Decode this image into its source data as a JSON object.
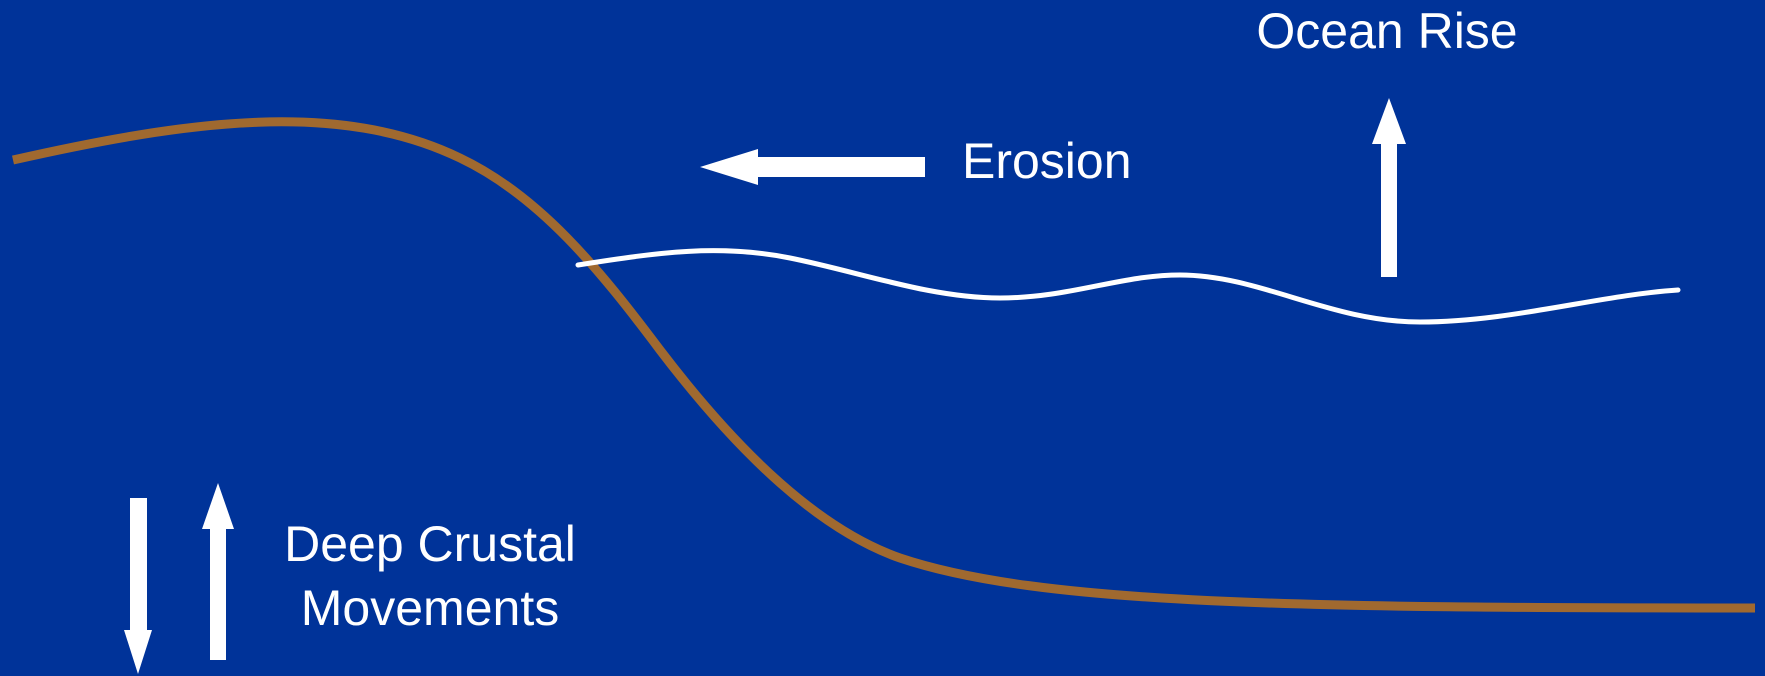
{
  "labels": {
    "ocean_rise": "Ocean Rise",
    "erosion": "Erosion",
    "deep_crustal_line1": "Deep Crustal",
    "deep_crustal_line2": "Movements"
  },
  "colors": {
    "background": "#003399",
    "land_surface": "#A0692F",
    "sea_surface": "#FFFFFF",
    "arrows": "#FFFFFF",
    "text": "#FFFFFF"
  },
  "icons": {
    "erosion_arrow": "arrow-left-icon",
    "ocean_rise_arrow": "arrow-up-icon",
    "crustal_down_arrow": "arrow-down-icon",
    "crustal_up_arrow": "arrow-up-icon"
  }
}
